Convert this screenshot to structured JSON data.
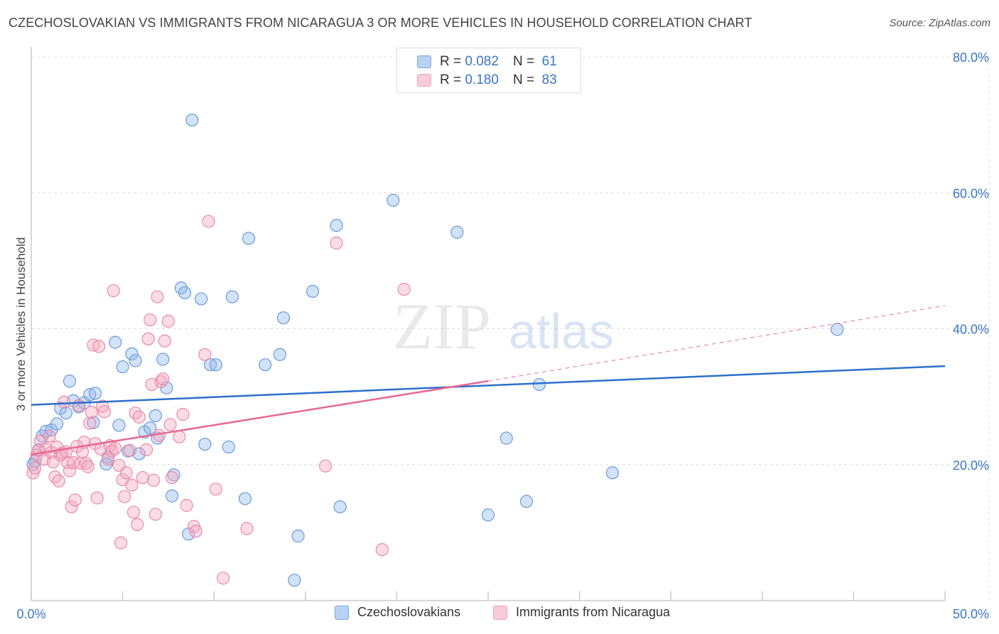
{
  "title": "CZECHOSLOVAKIAN VS IMMIGRANTS FROM NICARAGUA 3 OR MORE VEHICLES IN HOUSEHOLD CORRELATION CHART",
  "source": "Source: ZipAtlas.com",
  "watermark": {
    "zip": "ZIP",
    "atlas": "atlas"
  },
  "legend_top": [
    {
      "r_label": "R =",
      "r_value": "0.082",
      "n_label": "N =",
      "n_value": "61"
    },
    {
      "r_label": "R =",
      "r_value": "0.180",
      "n_label": "N =",
      "n_value": "83"
    }
  ],
  "chart_data": {
    "type": "scatter",
    "title": "CZECHOSLOVAKIAN VS IMMIGRANTS FROM NICARAGUA 3 OR MORE VEHICLES IN HOUSEHOLD CORRELATION CHART",
    "xlabel": "",
    "ylabel": "3 or more Vehicles in Household",
    "xlim": [
      0,
      50
    ],
    "ylim": [
      0,
      80
    ],
    "x_tick_labels": [
      "0.0%",
      "50.0%"
    ],
    "y_ticks": [
      20,
      40,
      60,
      80
    ],
    "y_tick_labels": [
      "20.0%",
      "40.0%",
      "60.0%",
      "80.0%"
    ],
    "grid": true,
    "legend_position": "bottom",
    "series": [
      {
        "name": "Czechoslovakians",
        "color": "#8fb6ea",
        "stroke": "#6a9bd8",
        "trend_color": "#2e6fcc",
        "trend": {
          "x0": 0,
          "y0": 28.8,
          "x1": 50,
          "y1": 34.5
        },
        "points": [
          [
            0.2,
            20.5
          ],
          [
            0.4,
            22.2
          ],
          [
            0.6,
            24.2
          ],
          [
            0.8,
            24.9
          ],
          [
            1.1,
            25.1
          ],
          [
            1.4,
            26.0
          ],
          [
            1.6,
            28.3
          ],
          [
            1.9,
            27.6
          ],
          [
            2.1,
            32.3
          ],
          [
            2.3,
            29.4
          ],
          [
            2.6,
            28.5
          ],
          [
            2.9,
            29.1
          ],
          [
            3.2,
            30.3
          ],
          [
            3.5,
            30.5
          ],
          [
            3.4,
            26.2
          ],
          [
            4.2,
            21.1
          ],
          [
            4.1,
            20.1
          ],
          [
            4.6,
            38.0
          ],
          [
            4.8,
            25.8
          ],
          [
            5.0,
            34.4
          ],
          [
            5.3,
            22.0
          ],
          [
            5.5,
            36.3
          ],
          [
            5.7,
            35.3
          ],
          [
            5.9,
            21.6
          ],
          [
            6.2,
            24.8
          ],
          [
            6.5,
            25.4
          ],
          [
            6.8,
            27.2
          ],
          [
            6.9,
            23.9
          ],
          [
            7.2,
            35.5
          ],
          [
            7.4,
            31.3
          ],
          [
            7.7,
            15.4
          ],
          [
            7.8,
            18.5
          ],
          [
            8.2,
            46.0
          ],
          [
            8.4,
            45.3
          ],
          [
            8.6,
            9.8
          ],
          [
            8.8,
            70.7
          ],
          [
            9.3,
            44.4
          ],
          [
            9.5,
            23.0
          ],
          [
            9.8,
            34.7
          ],
          [
            10.1,
            34.7
          ],
          [
            10.8,
            22.6
          ],
          [
            11.0,
            44.7
          ],
          [
            11.7,
            15.0
          ],
          [
            11.9,
            53.3
          ],
          [
            12.8,
            34.7
          ],
          [
            13.6,
            36.2
          ],
          [
            13.8,
            41.6
          ],
          [
            14.4,
            3.0
          ],
          [
            14.6,
            9.5
          ],
          [
            15.4,
            45.5
          ],
          [
            16.7,
            55.2
          ],
          [
            16.9,
            13.8
          ],
          [
            19.8,
            58.9
          ],
          [
            23.3,
            54.2
          ],
          [
            25.0,
            12.6
          ],
          [
            26.0,
            23.9
          ],
          [
            27.1,
            14.6
          ],
          [
            27.8,
            31.8
          ],
          [
            31.8,
            18.8
          ],
          [
            44.1,
            39.9
          ],
          [
            0.1,
            20.0
          ]
        ]
      },
      {
        "name": "Immigrants from Nicaragua",
        "color": "#f4a7be",
        "stroke": "#e98aa8",
        "trend_color": "#e86892",
        "trend": {
          "x0": 0,
          "y0": 21.5,
          "x1": 25,
          "y1": 32.3
        },
        "trend_dashed": {
          "x0": 25,
          "y0": 32.3,
          "x1": 50,
          "y1": 43.4
        },
        "points": [
          [
            0.1,
            18.8
          ],
          [
            0.3,
            21.4
          ],
          [
            0.4,
            22.1
          ],
          [
            0.5,
            23.5
          ],
          [
            0.7,
            20.8
          ],
          [
            0.8,
            22.3
          ],
          [
            1.0,
            24.2
          ],
          [
            1.1,
            21.8
          ],
          [
            1.2,
            20.4
          ],
          [
            1.3,
            18.2
          ],
          [
            1.4,
            22.6
          ],
          [
            1.5,
            17.6
          ],
          [
            1.6,
            21.4
          ],
          [
            1.7,
            21.7
          ],
          [
            1.8,
            29.2
          ],
          [
            1.9,
            21.9
          ],
          [
            2.0,
            20.3
          ],
          [
            2.1,
            19.1
          ],
          [
            2.2,
            13.8
          ],
          [
            2.3,
            20.3
          ],
          [
            2.4,
            14.8
          ],
          [
            2.5,
            22.7
          ],
          [
            2.6,
            28.7
          ],
          [
            2.7,
            20.2
          ],
          [
            2.8,
            21.9
          ],
          [
            2.9,
            23.3
          ],
          [
            3.0,
            20.2
          ],
          [
            3.1,
            19.7
          ],
          [
            3.2,
            26.1
          ],
          [
            3.3,
            27.7
          ],
          [
            3.4,
            37.6
          ],
          [
            3.5,
            23.1
          ],
          [
            3.6,
            15.1
          ],
          [
            3.7,
            37.4
          ],
          [
            3.8,
            22.3
          ],
          [
            3.9,
            28.6
          ],
          [
            4.0,
            27.8
          ],
          [
            4.2,
            20.8
          ],
          [
            4.3,
            22.8
          ],
          [
            4.4,
            22.0
          ],
          [
            4.5,
            45.6
          ],
          [
            4.6,
            22.4
          ],
          [
            4.8,
            19.9
          ],
          [
            4.9,
            8.5
          ],
          [
            5.0,
            17.8
          ],
          [
            5.1,
            15.3
          ],
          [
            5.2,
            18.8
          ],
          [
            5.4,
            22.1
          ],
          [
            5.5,
            17.0
          ],
          [
            5.6,
            13.0
          ],
          [
            5.7,
            27.6
          ],
          [
            5.8,
            11.2
          ],
          [
            5.9,
            27.0
          ],
          [
            6.1,
            18.1
          ],
          [
            6.3,
            22.2
          ],
          [
            6.4,
            38.5
          ],
          [
            6.5,
            41.3
          ],
          [
            6.6,
            31.8
          ],
          [
            6.7,
            17.7
          ],
          [
            6.8,
            12.7
          ],
          [
            6.9,
            44.7
          ],
          [
            7.0,
            24.3
          ],
          [
            7.1,
            32.2
          ],
          [
            7.2,
            32.6
          ],
          [
            7.3,
            38.2
          ],
          [
            7.5,
            41.1
          ],
          [
            7.6,
            25.9
          ],
          [
            7.7,
            18.1
          ],
          [
            8.1,
            24.1
          ],
          [
            8.3,
            27.4
          ],
          [
            8.5,
            14.0
          ],
          [
            8.9,
            10.9
          ],
          [
            9.0,
            10.2
          ],
          [
            9.5,
            36.2
          ],
          [
            9.7,
            55.8
          ],
          [
            10.1,
            16.4
          ],
          [
            10.5,
            3.3
          ],
          [
            11.8,
            10.6
          ],
          [
            16.1,
            19.8
          ],
          [
            16.7,
            52.6
          ],
          [
            19.2,
            7.5
          ],
          [
            20.4,
            45.8
          ],
          [
            0.2,
            19.5
          ]
        ]
      }
    ]
  }
}
